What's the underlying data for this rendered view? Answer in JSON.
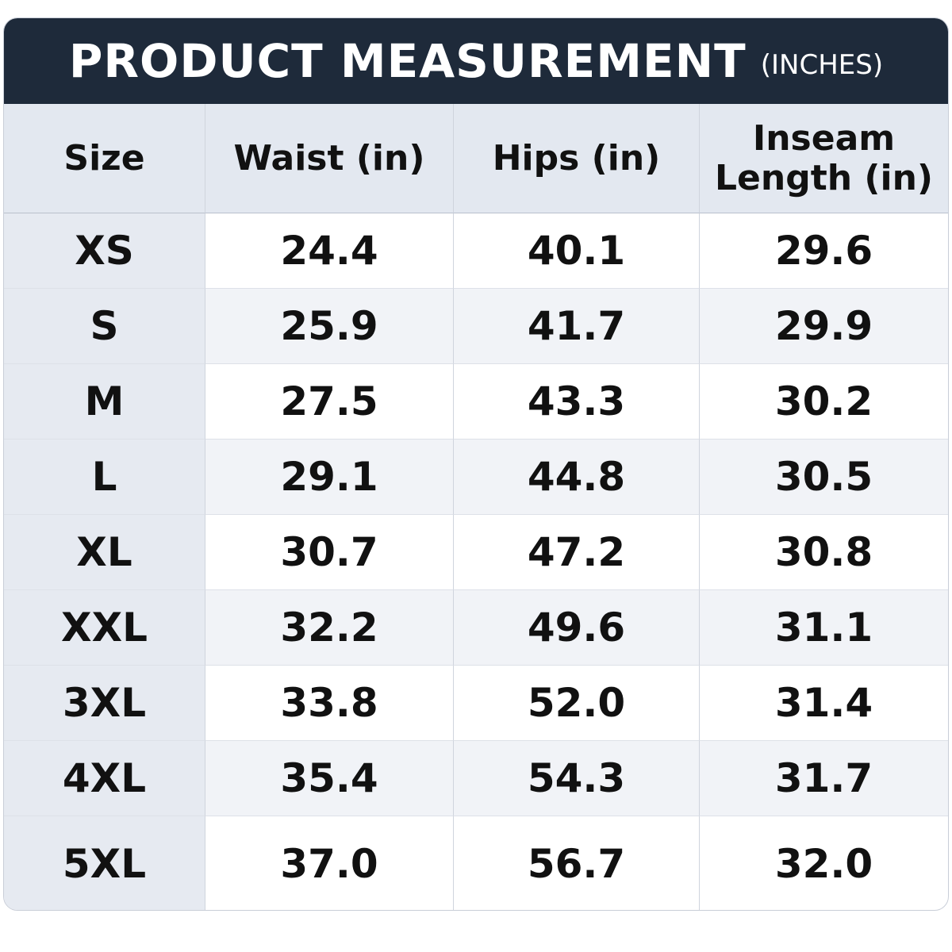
{
  "header": {
    "title": "PRODUCT MEASUREMENT",
    "unit": "(INCHES)"
  },
  "table": {
    "columns": [
      "Size",
      "Waist (in)",
      "Hips (in)",
      "Inseam Length (in)"
    ],
    "rows": [
      [
        "XS",
        "24.4",
        "40.1",
        "29.6"
      ],
      [
        "S",
        "25.9",
        "41.7",
        "29.9"
      ],
      [
        "M",
        "27.5",
        "43.3",
        "30.2"
      ],
      [
        "L",
        "29.1",
        "44.8",
        "30.5"
      ],
      [
        "XL",
        "30.7",
        "47.2",
        "30.8"
      ],
      [
        "XXL",
        "32.2",
        "49.6",
        "31.1"
      ],
      [
        "3XL",
        "33.8",
        "52.0",
        "31.4"
      ],
      [
        "4XL",
        "35.4",
        "54.3",
        "31.7"
      ],
      [
        "5XL",
        "37.0",
        "56.7",
        "32.0"
      ]
    ]
  }
}
